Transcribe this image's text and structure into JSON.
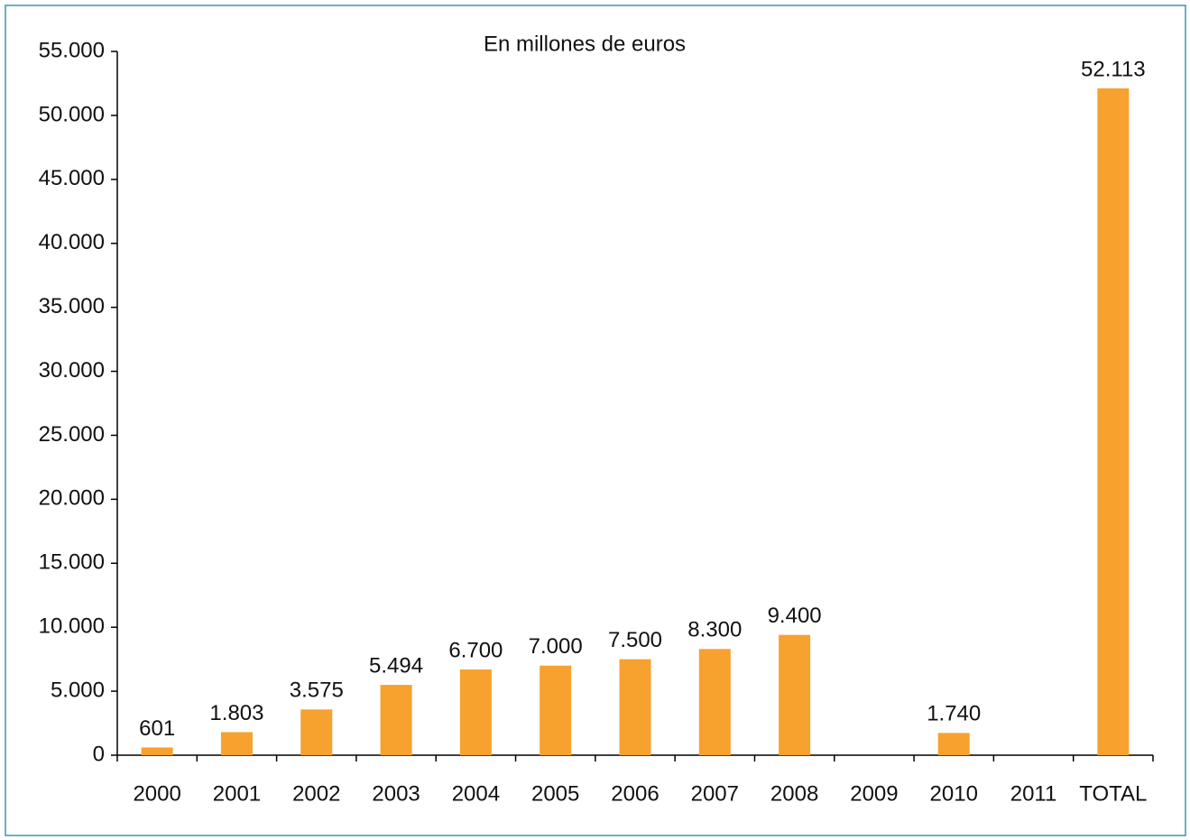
{
  "chart_data": {
    "type": "bar",
    "title": "En millones de euros",
    "categories": [
      "2000",
      "2001",
      "2002",
      "2003",
      "2004",
      "2005",
      "2006",
      "2007",
      "2008",
      "2009",
      "2010",
      "2011",
      "TOTAL"
    ],
    "values": [
      601,
      1803,
      3575,
      5494,
      6700,
      7000,
      7500,
      8300,
      9400,
      null,
      1740,
      null,
      52113
    ],
    "value_labels": [
      "601",
      "1.803",
      "3.575",
      "5.494",
      "6.700",
      "7.000",
      "7.500",
      "8.300",
      "9.400",
      null,
      "1.740",
      null,
      "52.113"
    ],
    "color": "#f7a12e",
    "ylim": [
      0,
      55000
    ],
    "yticks": [
      0,
      {
        "value": 5000,
        "label": "5.000"
      },
      {
        "value": 10000,
        "label": "10.000"
      },
      {
        "value": 15000,
        "label": "15.000"
      },
      {
        "value": 20000,
        "label": "20.000"
      },
      {
        "value": 25000,
        "label": "25.000"
      },
      {
        "value": 30000,
        "label": "30.000"
      },
      {
        "value": 35000,
        "label": "35.000"
      },
      {
        "value": 40000,
        "label": "40.000"
      },
      {
        "value": 45000,
        "label": "45.000"
      },
      {
        "value": 50000,
        "label": "50.000"
      },
      {
        "value": 55000,
        "label": "55.000"
      }
    ],
    "grid": false
  }
}
